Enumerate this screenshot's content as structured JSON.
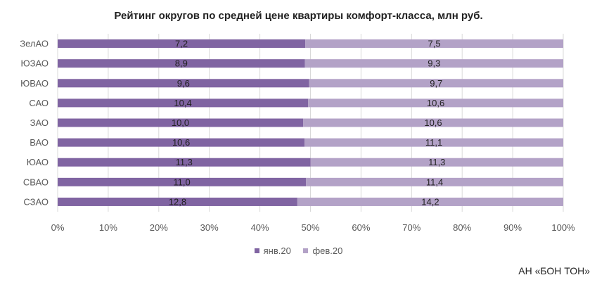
{
  "chart_data": {
    "type": "bar",
    "orientation": "horizontal",
    "stacked": "100%",
    "title": "Рейтинг округов по средней цене квартиры комфорт-класса, млн руб.",
    "categories": [
      "ЗелАО",
      "ЮЗАО",
      "ЮВАО",
      "САО",
      "ЗАО",
      "ВАО",
      "ЮАО",
      "СВАО",
      "СЗАО"
    ],
    "series": [
      {
        "name": "янв.20",
        "color": "#8064a2",
        "values": [
          7.2,
          8.9,
          9.6,
          10.4,
          10.0,
          10.6,
          11.3,
          11.0,
          12.8
        ],
        "labels": [
          "7,2",
          "8,9",
          "9,6",
          "10,4",
          "10,0",
          "10,6",
          "11,3",
          "11,0",
          "12,8"
        ]
      },
      {
        "name": "фев.20",
        "color": "#b3a2c7",
        "values": [
          7.5,
          9.3,
          9.7,
          10.6,
          10.6,
          11.1,
          11.3,
          11.4,
          14.2
        ],
        "labels": [
          "7,5",
          "9,3",
          "9,7",
          "10,6",
          "10,6",
          "11,1",
          "11,3",
          "11,4",
          "14,2"
        ]
      }
    ],
    "x_ticks": [
      "0%",
      "10%",
      "20%",
      "30%",
      "40%",
      "50%",
      "60%",
      "70%",
      "80%",
      "90%",
      "100%"
    ],
    "xlim": [
      0,
      100
    ],
    "grid": true,
    "legend_position": "bottom"
  },
  "source": "АН «БОН ТОН»",
  "colors": {
    "text": "#404040",
    "grid": "#d9d9d9"
  }
}
